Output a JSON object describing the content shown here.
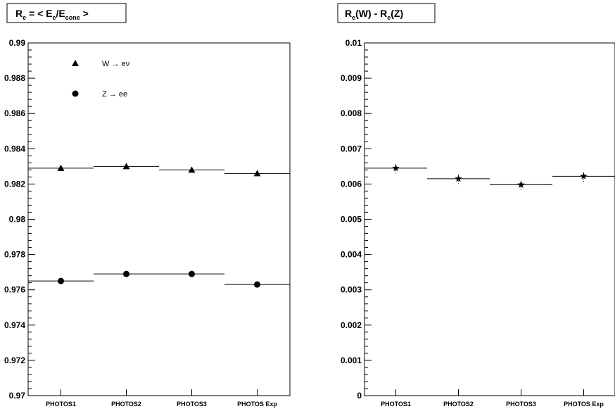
{
  "chart_data": [
    {
      "type": "scatter",
      "title": "R_e = < E_e/E_cone >",
      "title_parts": {
        "r": "R",
        "r_sub": "e",
        "eq": " = < E",
        "e_sub": "e",
        "slash": "/E",
        "cone_sub": "cone",
        "close": " >"
      },
      "categories": [
        "PHOTOS1",
        "PHOTOS2",
        "PHOTOS3",
        "PHOTOS Exp"
      ],
      "ylim": [
        0.97,
        0.99
      ],
      "yticks": [
        0.97,
        0.972,
        0.974,
        0.976,
        0.978,
        0.98,
        0.982,
        0.984,
        0.986,
        0.988,
        0.99
      ],
      "ytick_labels": [
        "0.97",
        "0.972",
        "0.974",
        "0.976",
        "0.978",
        "0.98",
        "0.982",
        "0.984",
        "0.986",
        "0.988",
        "0.99"
      ],
      "series": [
        {
          "name": "W → eν",
          "marker": "triangle",
          "values": [
            0.9829,
            0.983,
            0.9828,
            0.9826
          ]
        },
        {
          "name": "Z → ee",
          "marker": "circle",
          "values": [
            0.9765,
            0.9769,
            0.9769,
            0.9763
          ]
        }
      ],
      "legend": "top-left"
    },
    {
      "type": "scatter",
      "title": "R_e(W) - R_e(Z)",
      "title_parts": {
        "r1": "R",
        "s1": "e",
        "mid": "(W) - R",
        "s2": "e",
        "end": "(Z)"
      },
      "categories": [
        "PHOTOS1",
        "PHOTOS2",
        "PHOTOS3",
        "PHOTOS Exp"
      ],
      "ylim": [
        0,
        0.01
      ],
      "yticks": [
        0,
        0.001,
        0.002,
        0.003,
        0.004,
        0.005,
        0.006,
        0.007,
        0.008,
        0.009,
        0.01
      ],
      "ytick_labels": [
        "0",
        "0.001",
        "0.002",
        "0.003",
        "0.004",
        "0.005",
        "0.006",
        "0.007",
        "0.008",
        "0.009",
        "0.01"
      ],
      "series": [
        {
          "marker": "star",
          "values": [
            0.00645,
            0.00615,
            0.00598,
            0.00622
          ],
          "errors": [
            0.00015,
            0.00015,
            0.00015,
            0.00015
          ]
        }
      ]
    }
  ]
}
